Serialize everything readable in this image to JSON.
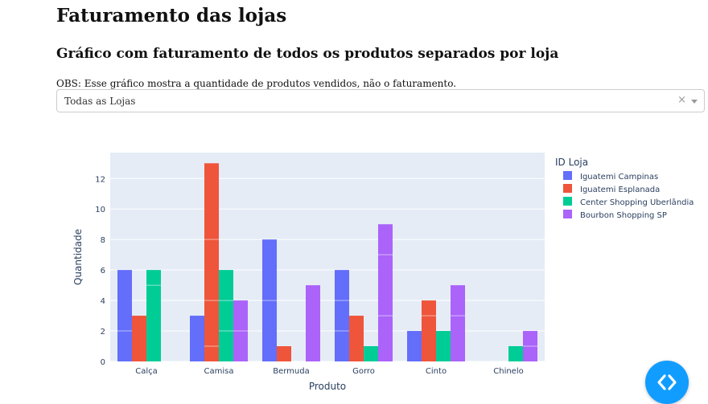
{
  "page": {
    "title": "Faturamento das lojas",
    "chart_heading": "Gráfico com faturamento de todos os produtos separados por loja",
    "note": "OBS: Esse gráfico mostra a quantidade de produtos vendidos, não o faturamento."
  },
  "dropdown": {
    "value": "Todas as Lojas",
    "clear_symbol": "×"
  },
  "fab": {
    "icon": "code-brackets-icon",
    "color": "#119dff"
  },
  "chart_data": {
    "type": "bar",
    "barmode": "group",
    "xlabel": "Produto",
    "ylabel": "Quantidade",
    "legend_title": "ID Loja",
    "legend_position": "right",
    "grid": true,
    "ylim": [
      0,
      13.7
    ],
    "yticks": [
      0,
      2,
      4,
      6,
      8,
      10,
      12
    ],
    "categories": [
      "Calça",
      "Camisa",
      "Bermuda",
      "Gorro",
      "Cinto",
      "Chinelo"
    ],
    "series": [
      {
        "name": "Iguatemi Campinas",
        "color": "#636efa",
        "values": [
          6,
          3,
          8,
          6,
          2,
          0
        ],
        "segments": [
          [
            2,
            4
          ],
          [
            3
          ],
          [
            4,
            4
          ],
          [
            2,
            2,
            2
          ],
          [
            2
          ],
          []
        ]
      },
      {
        "name": "Iguatemi Esplanada",
        "color": "#ef553b",
        "values": [
          3,
          13,
          1,
          3,
          4,
          0
        ],
        "segments": [
          [
            3
          ],
          [
            1,
            3,
            4,
            5
          ],
          [
            1
          ],
          [
            3
          ],
          [
            3,
            1
          ],
          []
        ]
      },
      {
        "name": "Center Shopping Uberlândia",
        "color": "#00cc96",
        "values": [
          6,
          6,
          0,
          1,
          2,
          1
        ],
        "segments": [
          [
            5,
            1
          ],
          [
            2,
            2,
            2
          ],
          [],
          [
            1
          ],
          [
            2
          ],
          [
            1
          ]
        ]
      },
      {
        "name": "Bourbon Shopping SP",
        "color": "#ab63fa",
        "values": [
          0,
          4,
          5,
          9,
          5,
          2
        ],
        "segments": [
          [],
          [
            2,
            2
          ],
          [
            5
          ],
          [
            3,
            4,
            2
          ],
          [
            3,
            2
          ],
          [
            1,
            1
          ]
        ]
      }
    ]
  }
}
